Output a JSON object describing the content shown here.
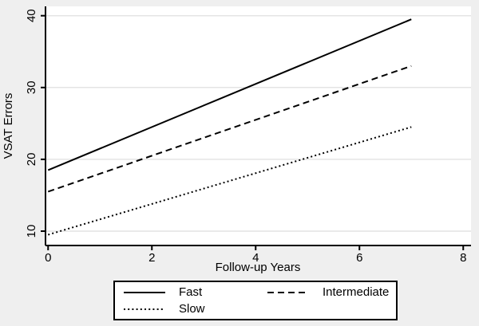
{
  "figure": {
    "background_color": "#efefef",
    "plot_background_color": "#ffffff",
    "grid_color": "#e4e4e4",
    "axis_color": "#000000",
    "line_color": "#000000",
    "legend_background_color": "#ffffff",
    "legend_border_color": "#000000"
  },
  "chart_data": {
    "type": "line",
    "title": "",
    "xlabel": "Follow-up Years",
    "ylabel": "VSAT Errors",
    "x_ticks": [
      0,
      2,
      4,
      6,
      8
    ],
    "y_ticks": [
      10,
      20,
      30,
      40
    ],
    "xlim": [
      -0.05,
      8.15
    ],
    "ylim": [
      8,
      41.3
    ],
    "grid": "horizontal",
    "legend_position": "bottom",
    "x": [
      0,
      7
    ],
    "series": [
      {
        "name": "Fast",
        "line_style": "solid",
        "values": [
          18.5,
          39.5
        ]
      },
      {
        "name": "Intermediate",
        "line_style": "dashed",
        "values": [
          15.5,
          33.0
        ]
      },
      {
        "name": "Slow",
        "line_style": "dotted",
        "values": [
          9.5,
          24.5
        ]
      }
    ]
  },
  "legend": {
    "entries": [
      {
        "label": "Fast",
        "line_style": "solid"
      },
      {
        "label": "Intermediate",
        "line_style": "dashed"
      },
      {
        "label": "Slow",
        "line_style": "dotted"
      }
    ]
  }
}
